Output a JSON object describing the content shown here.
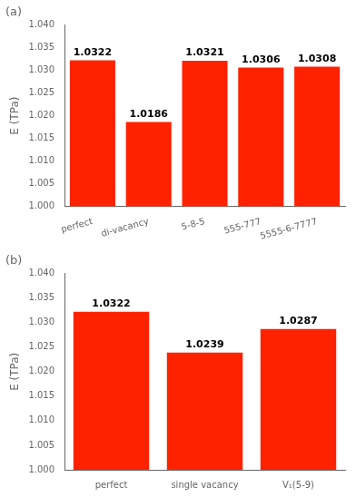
{
  "chart_data": [
    {
      "type": "bar",
      "title": "(a)",
      "categories": [
        "perfect",
        "di-vacancy",
        "5-8-5",
        "555-777",
        "5555-6-7777"
      ],
      "values": [
        1.0322,
        1.0186,
        1.0321,
        1.0306,
        1.0308
      ],
      "color": "#FF2200",
      "y_label": "E (TPa)",
      "ylim": [
        1.0,
        1.04
      ],
      "yticks": [
        {
          "value": 1.0,
          "label": "1.000"
        },
        {
          "value": 1.005,
          "label": "1.005"
        },
        {
          "value": 1.01,
          "label": "1.010"
        },
        {
          "value": 1.015,
          "label": "1.015"
        },
        {
          "value": 1.02,
          "label": "1.020"
        },
        {
          "value": 1.025,
          "label": "1.025"
        },
        {
          "value": 1.03,
          "label": "1.030"
        },
        {
          "value": 1.035,
          "label": "1.035"
        },
        {
          "value": 1.04,
          "label": "1.040"
        }
      ],
      "data_labels": true,
      "grid": false
    },
    {
      "type": "bar",
      "title": "(b)",
      "categories": [
        "perfect",
        "single vacancy",
        "V₁(5-9)"
      ],
      "values": [
        1.0322,
        1.0239,
        1.0287
      ],
      "color": "#FF2200",
      "y_label": "E (TPa)",
      "ylim": [
        1.0,
        1.04
      ],
      "yticks": [
        {
          "value": 1.0,
          "label": "1.000"
        },
        {
          "value": 1.005,
          "label": "1.005"
        },
        {
          "value": 1.01,
          "label": "1.010"
        },
        {
          "value": 1.015,
          "label": "1.015"
        },
        {
          "value": 1.02,
          "label": "1.020"
        },
        {
          "value": 1.025,
          "label": "1.025"
        },
        {
          "value": 1.03,
          "label": "1.030"
        },
        {
          "value": 1.035,
          "label": "1.035"
        },
        {
          "value": 1.04,
          "label": "1.040"
        }
      ],
      "data_labels": true,
      "grid": false
    }
  ]
}
